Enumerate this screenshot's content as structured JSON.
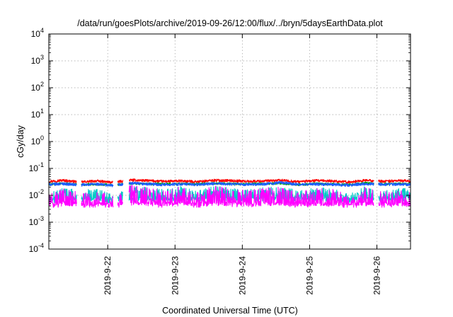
{
  "chart_data": {
    "type": "line",
    "title": "/data/run/goesPlots/archive/2019-09-26/12:00/flux/../bryn/5daysEarthData.plot",
    "xlabel": "Coordinated Universal Time (UTC)",
    "ylabel": "cGy/day",
    "yscale": "log",
    "ylim": [
      0.0001,
      10000
    ],
    "xlim": [
      "2019-09-21T03:00",
      "2019-09-26T12:00"
    ],
    "grid": true,
    "legend": "none",
    "y_ticks": [
      {
        "value": 0.0001,
        "mantissa": "10",
        "exponent": "-4"
      },
      {
        "value": 0.001,
        "mantissa": "10",
        "exponent": "-3"
      },
      {
        "value": 0.01,
        "mantissa": "10",
        "exponent": "-2"
      },
      {
        "value": 0.1,
        "mantissa": "10",
        "exponent": "-1"
      },
      {
        "value": 1,
        "mantissa": "10",
        "exponent": "0"
      },
      {
        "value": 10,
        "mantissa": "10",
        "exponent": "1"
      },
      {
        "value": 100,
        "mantissa": "10",
        "exponent": "2"
      },
      {
        "value": 1000,
        "mantissa": "10",
        "exponent": "3"
      },
      {
        "value": 10000,
        "mantissa": "10",
        "exponent": "4"
      }
    ],
    "x_ticks": [
      {
        "value": "2019-09-22T00:00",
        "label": "2019-9-22"
      },
      {
        "value": "2019-09-23T00:00",
        "label": "2019-9-23"
      },
      {
        "value": "2019-09-24T00:00",
        "label": "2019-9-24"
      },
      {
        "value": "2019-09-25T00:00",
        "label": "2019-9-25"
      },
      {
        "value": "2019-09-26T00:00",
        "label": "2019-9-26"
      }
    ],
    "series": [
      {
        "color": "#ff0000",
        "typical_range": [
          0.025,
          0.045
        ],
        "values": [
          [
            "2019-09-21T03:00",
            0.033
          ],
          [
            "2019-09-21T08:00",
            0.036
          ],
          [
            "2019-09-21T14:00",
            0.031
          ],
          [
            "2019-09-21T20:00",
            0.034
          ],
          [
            "2019-09-22T02:00",
            0.03
          ],
          [
            "2019-09-22T08:00",
            0.037
          ],
          [
            "2019-09-22T14:00",
            0.035
          ],
          [
            "2019-09-22T20:00",
            0.033
          ],
          [
            "2019-09-23T02:00",
            0.034
          ],
          [
            "2019-09-23T08:00",
            0.032
          ],
          [
            "2019-09-23T14:00",
            0.036
          ],
          [
            "2019-09-23T20:00",
            0.035
          ],
          [
            "2019-09-24T02:00",
            0.033
          ],
          [
            "2019-09-24T08:00",
            0.034
          ],
          [
            "2019-09-24T14:00",
            0.036
          ],
          [
            "2019-09-24T20:00",
            0.032
          ],
          [
            "2019-09-25T02:00",
            0.035
          ],
          [
            "2019-09-25T08:00",
            0.034
          ],
          [
            "2019-09-25T14:00",
            0.031
          ],
          [
            "2019-09-25T20:00",
            0.036
          ],
          [
            "2019-09-26T02:00",
            0.033
          ],
          [
            "2019-09-26T08:00",
            0.035
          ],
          [
            "2019-09-26T12:00",
            0.034
          ]
        ]
      },
      {
        "color": "#00a000",
        "typical_range": [
          0.02,
          0.035
        ],
        "values": [
          [
            "2019-09-21T03:00",
            0.026
          ],
          [
            "2019-09-21T08:00",
            0.027
          ],
          [
            "2019-09-21T14:00",
            0.025
          ],
          [
            "2019-09-21T20:00",
            0.026
          ],
          [
            "2019-09-22T02:00",
            0.024
          ],
          [
            "2019-09-22T08:00",
            0.028
          ],
          [
            "2019-09-22T14:00",
            0.027
          ],
          [
            "2019-09-22T20:00",
            0.026
          ],
          [
            "2019-09-23T02:00",
            0.027
          ],
          [
            "2019-09-23T08:00",
            0.026
          ],
          [
            "2019-09-23T14:00",
            0.028
          ],
          [
            "2019-09-23T20:00",
            0.027
          ],
          [
            "2019-09-24T02:00",
            0.026
          ],
          [
            "2019-09-24T08:00",
            0.027
          ],
          [
            "2019-09-24T14:00",
            0.028
          ],
          [
            "2019-09-24T20:00",
            0.025
          ],
          [
            "2019-09-25T02:00",
            0.027
          ],
          [
            "2019-09-25T08:00",
            0.026
          ],
          [
            "2019-09-25T14:00",
            0.025
          ],
          [
            "2019-09-25T20:00",
            0.028
          ],
          [
            "2019-09-26T02:00",
            0.026
          ],
          [
            "2019-09-26T08:00",
            0.027
          ],
          [
            "2019-09-26T12:00",
            0.026
          ]
        ]
      },
      {
        "color": "#1e5fff",
        "typical_range": [
          0.018,
          0.035
        ],
        "values": [
          [
            "2019-09-21T03:00",
            0.025
          ],
          [
            "2019-09-21T08:00",
            0.027
          ],
          [
            "2019-09-21T14:00",
            0.024
          ],
          [
            "2019-09-21T20:00",
            0.026
          ],
          [
            "2019-09-22T02:00",
            0.023
          ],
          [
            "2019-09-22T08:00",
            0.028
          ],
          [
            "2019-09-22T14:00",
            0.026
          ],
          [
            "2019-09-22T20:00",
            0.025
          ],
          [
            "2019-09-23T02:00",
            0.026
          ],
          [
            "2019-09-23T08:00",
            0.025
          ],
          [
            "2019-09-23T14:00",
            0.027
          ],
          [
            "2019-09-23T20:00",
            0.026
          ],
          [
            "2019-09-24T02:00",
            0.025
          ],
          [
            "2019-09-24T08:00",
            0.026
          ],
          [
            "2019-09-24T14:00",
            0.03
          ],
          [
            "2019-09-24T20:00",
            0.025
          ],
          [
            "2019-09-25T02:00",
            0.026
          ],
          [
            "2019-09-25T08:00",
            0.025
          ],
          [
            "2019-09-25T14:00",
            0.024
          ],
          [
            "2019-09-25T20:00",
            0.027
          ],
          [
            "2019-09-26T02:00",
            0.025
          ],
          [
            "2019-09-26T08:00",
            0.026
          ],
          [
            "2019-09-26T12:00",
            0.025
          ]
        ]
      },
      {
        "color": "#00c8c8",
        "typical_range": [
          0.006,
          0.02
        ],
        "values": [
          [
            "2019-09-21T03:00",
            0.007
          ],
          [
            "2019-09-21T08:00",
            0.012
          ],
          [
            "2019-09-21T14:00",
            0.009
          ],
          [
            "2019-09-21T20:00",
            0.011
          ],
          [
            "2019-09-22T02:00",
            0.006
          ],
          [
            "2019-09-22T08:00",
            0.015
          ],
          [
            "2019-09-22T14:00",
            0.012
          ],
          [
            "2019-09-22T20:00",
            0.01
          ],
          [
            "2019-09-23T02:00",
            0.013
          ],
          [
            "2019-09-23T08:00",
            0.009
          ],
          [
            "2019-09-23T14:00",
            0.014
          ],
          [
            "2019-09-23T20:00",
            0.011
          ],
          [
            "2019-09-24T02:00",
            0.01
          ],
          [
            "2019-09-24T08:00",
            0.012
          ],
          [
            "2019-09-24T14:00",
            0.013
          ],
          [
            "2019-09-24T20:00",
            0.009
          ],
          [
            "2019-09-25T02:00",
            0.012
          ],
          [
            "2019-09-25T08:00",
            0.011
          ],
          [
            "2019-09-25T14:00",
            0.008
          ],
          [
            "2019-09-25T20:00",
            0.013
          ],
          [
            "2019-09-26T02:00",
            0.009
          ],
          [
            "2019-09-26T08:00",
            0.012
          ],
          [
            "2019-09-26T12:00",
            0.01
          ]
        ]
      },
      {
        "color": "#ff00ff",
        "typical_range": [
          0.004,
          0.025
        ],
        "values": [
          [
            "2019-09-21T03:00",
            0.005
          ],
          [
            "2019-09-21T08:00",
            0.009
          ],
          [
            "2019-09-21T14:00",
            0.006
          ],
          [
            "2019-09-21T20:00",
            0.008
          ],
          [
            "2019-09-22T02:00",
            0.004
          ],
          [
            "2019-09-22T08:00",
            0.012
          ],
          [
            "2019-09-22T14:00",
            0.009
          ],
          [
            "2019-09-22T20:00",
            0.007
          ],
          [
            "2019-09-23T02:00",
            0.01
          ],
          [
            "2019-09-23T08:00",
            0.006
          ],
          [
            "2019-09-23T14:00",
            0.011
          ],
          [
            "2019-09-23T20:00",
            0.008
          ],
          [
            "2019-09-24T02:00",
            0.007
          ],
          [
            "2019-09-24T08:00",
            0.009
          ],
          [
            "2019-09-24T14:00",
            0.01
          ],
          [
            "2019-09-24T20:00",
            0.006
          ],
          [
            "2019-09-25T02:00",
            0.009
          ],
          [
            "2019-09-25T08:00",
            0.008
          ],
          [
            "2019-09-25T14:00",
            0.005
          ],
          [
            "2019-09-25T20:00",
            0.01
          ],
          [
            "2019-09-26T02:00",
            0.006
          ],
          [
            "2019-09-26T08:00",
            0.009
          ],
          [
            "2019-09-26T12:00",
            0.007
          ]
        ]
      }
    ]
  }
}
